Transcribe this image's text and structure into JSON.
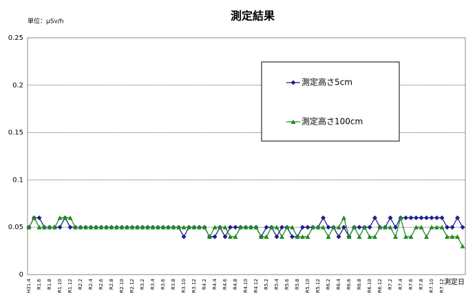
{
  "chart_data": {
    "type": "line",
    "title": "測定結果",
    "unit_label": "単位：μSv/h",
    "x_label": "測定日",
    "categories": [
      "H31.4",
      null,
      "R1.6",
      null,
      "R1.8",
      null,
      "R1.10",
      null,
      "R1.12",
      null,
      "R2.2",
      null,
      "R2.4",
      null,
      "R2.6",
      null,
      "R2.8",
      null,
      "R2.10",
      null,
      "R2.12",
      null,
      "R3.2",
      null,
      "R3.4",
      null,
      "R3.6",
      null,
      "R3.8",
      null,
      "R3.10",
      null,
      "R3.12",
      null,
      "R4.2",
      null,
      "R4.4",
      null,
      "R4.6",
      null,
      "R4.8",
      null,
      "R4.10",
      null,
      "R4.12",
      null,
      "R5.2",
      null,
      "R5.4",
      null,
      "R5.6",
      null,
      "R5.8",
      null,
      "R5.10",
      null,
      "R5.12",
      null,
      "R6.2",
      null,
      "R6.4",
      null,
      "R6.6",
      null,
      "R6.8",
      null,
      "R6.10",
      null,
      "R6.12",
      null,
      "R7.2",
      null,
      "R7.4",
      null,
      "R7.6",
      null,
      "R7.8",
      null,
      "R7.10",
      null,
      "R7.12",
      null,
      null,
      null,
      null
    ],
    "series": [
      {
        "name": "測定高さ5cm",
        "color": "#1f1f8f",
        "marker": "diamond",
        "values": [
          0.05,
          0.06,
          0.06,
          0.05,
          0.05,
          0.05,
          0.05,
          0.06,
          0.05,
          0.05,
          0.05,
          0.05,
          0.05,
          0.05,
          0.05,
          0.05,
          0.05,
          0.05,
          0.05,
          0.05,
          0.05,
          0.05,
          0.05,
          0.05,
          0.05,
          0.05,
          0.05,
          0.05,
          0.05,
          0.05,
          0.04,
          0.05,
          0.05,
          0.05,
          0.05,
          0.04,
          0.04,
          0.05,
          0.04,
          0.05,
          0.05,
          0.05,
          0.05,
          0.05,
          0.05,
          0.04,
          0.05,
          0.05,
          0.04,
          0.05,
          0.05,
          0.04,
          0.04,
          0.05,
          0.05,
          0.05,
          0.05,
          0.06,
          0.05,
          0.05,
          0.04,
          0.05,
          0.04,
          0.05,
          0.05,
          0.05,
          0.05,
          0.06,
          0.05,
          0.05,
          0.06,
          0.05,
          0.06,
          0.06,
          0.06,
          0.06,
          0.06,
          0.06,
          0.06,
          0.06,
          0.06,
          0.05,
          0.05,
          0.06,
          0.05
        ]
      },
      {
        "name": "測定高さ100cm",
        "color": "#228b22",
        "marker": "triangle",
        "values": [
          0.05,
          0.06,
          0.05,
          0.05,
          0.05,
          0.05,
          0.06,
          0.06,
          0.06,
          0.05,
          0.05,
          0.05,
          0.05,
          0.05,
          0.05,
          0.05,
          0.05,
          0.05,
          0.05,
          0.05,
          0.05,
          0.05,
          0.05,
          0.05,
          0.05,
          0.05,
          0.05,
          0.05,
          0.05,
          0.05,
          0.05,
          0.05,
          0.05,
          0.05,
          0.05,
          0.04,
          0.05,
          0.05,
          0.05,
          0.04,
          0.04,
          0.05,
          0.05,
          0.05,
          0.05,
          0.04,
          0.04,
          0.05,
          0.05,
          0.04,
          0.05,
          0.05,
          0.04,
          0.04,
          0.04,
          0.05,
          0.05,
          0.05,
          0.04,
          0.05,
          0.05,
          0.06,
          0.04,
          0.05,
          0.04,
          0.05,
          0.04,
          0.04,
          0.05,
          0.05,
          0.05,
          0.04,
          0.06,
          0.04,
          0.04,
          0.05,
          0.05,
          0.04,
          0.05,
          0.05,
          0.05,
          0.04,
          0.04,
          0.04,
          0.03
        ]
      }
    ],
    "ylim": [
      0,
      0.25
    ],
    "yticks": [
      0,
      0.05,
      0.1,
      0.15,
      0.2,
      0.25
    ],
    "grid": true
  }
}
